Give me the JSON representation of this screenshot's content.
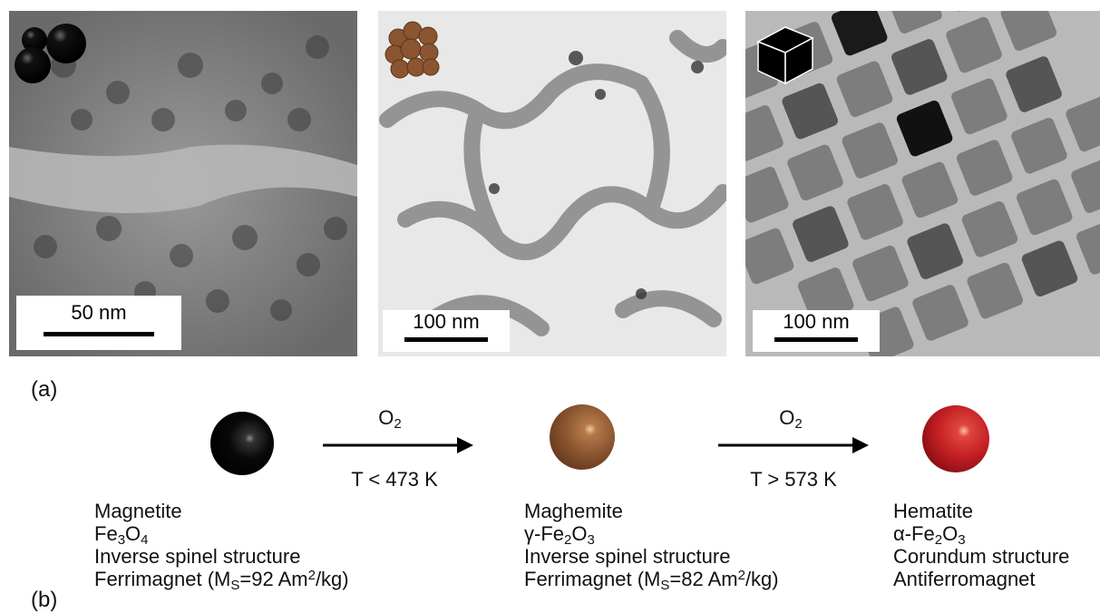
{
  "panel_a": {
    "label": "(a)",
    "images": [
      {
        "shape_icon": "three-black-spheres",
        "scale_bar": "50 nm"
      },
      {
        "shape_icon": "brown-flower-cluster",
        "scale_bar": "100 nm"
      },
      {
        "shape_icon": "black-cube",
        "scale_bar": "100 nm"
      }
    ]
  },
  "panel_b": {
    "label": "(b)",
    "arrows": [
      {
        "reagent": "O",
        "reagent_sub": "2",
        "condition": "T < 473 K"
      },
      {
        "reagent": "O",
        "reagent_sub": "2",
        "condition": "T > 573 K"
      }
    ],
    "phases": [
      {
        "color": "#000000",
        "name": "Magnetite",
        "formula": [
          [
            "Fe",
            ""
          ],
          [
            "3",
            "sub"
          ],
          [
            "O",
            ""
          ],
          [
            "4",
            "sub"
          ]
        ],
        "structure": "Inverse spinel structure",
        "magnetism": [
          [
            "Ferrimagnet (M",
            ""
          ],
          [
            "S",
            "sub"
          ],
          [
            "=92 Am",
            ""
          ],
          [
            "2",
            "sup"
          ],
          [
            "/kg)",
            ""
          ]
        ]
      },
      {
        "color": "#8a5530",
        "name": "Maghemite",
        "formula": [
          [
            "γ-Fe",
            ""
          ],
          [
            "2",
            "sub"
          ],
          [
            "O",
            ""
          ],
          [
            "3",
            "sub"
          ]
        ],
        "structure": "Inverse spinel structure",
        "magnetism": [
          [
            "Ferrimagnet (M",
            ""
          ],
          [
            "S",
            "sub"
          ],
          [
            "=82 Am",
            ""
          ],
          [
            "2",
            "sup"
          ],
          [
            "/kg)",
            ""
          ]
        ]
      },
      {
        "color": "#c41f24",
        "name": "Hematite",
        "formula": [
          [
            "α-Fe",
            ""
          ],
          [
            "2",
            "sub"
          ],
          [
            "O",
            ""
          ],
          [
            "3",
            "sub"
          ]
        ],
        "structure": "Corundum structure",
        "magnetism": [
          [
            "Antiferromagnet",
            ""
          ]
        ]
      }
    ]
  }
}
